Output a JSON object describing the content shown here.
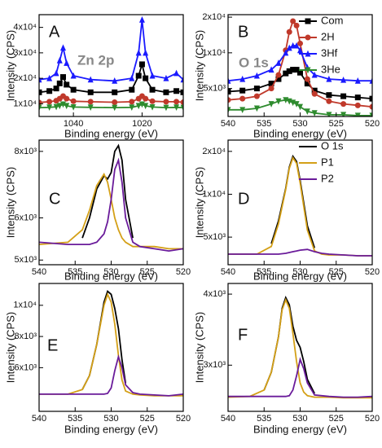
{
  "chart_data": [
    {
      "type": "line",
      "label": "A",
      "annotation": "Zn 2p",
      "xlabel": "Binding energy (eV)",
      "ylabel": "Intensity (CPS)",
      "xlim": [
        1050,
        1008
      ],
      "xticks": [
        1040,
        1020
      ],
      "ylim": [
        5000,
        45000
      ],
      "log": false,
      "yticks": [
        {
          "value": 10000,
          "label": "1x10⁴"
        },
        {
          "value": 20000,
          "label": "2x10⁴"
        },
        {
          "value": 30000,
          "label": "3x10⁴"
        },
        {
          "value": 40000,
          "label": "4x10⁴"
        }
      ],
      "x": [
        1050,
        1047,
        1045,
        1044,
        1043,
        1042,
        1040,
        1035,
        1028,
        1023,
        1021,
        1020,
        1019,
        1017,
        1013,
        1010,
        1008
      ],
      "series": [
        {
          "color": "#1a1aff",
          "marker": "triangle",
          "values": [
            19500,
            20000,
            22000,
            27000,
            32000,
            26000,
            21000,
            19500,
            19000,
            20000,
            30000,
            43000,
            30000,
            21000,
            20000,
            22000,
            19500
          ]
        },
        {
          "color": "#000000",
          "marker": "square",
          "values": [
            14500,
            15000,
            16000,
            18000,
            20500,
            17500,
            15500,
            14500,
            14500,
            15500,
            21000,
            25500,
            20000,
            15500,
            14500,
            15000,
            14500
          ]
        },
        {
          "color": "#c0392b",
          "marker": "circle",
          "values": [
            10500,
            10800,
            11200,
            12000,
            13000,
            12000,
            11000,
            10800,
            10600,
            10800,
            12000,
            13000,
            12000,
            11000,
            10800,
            10800,
            10600
          ]
        },
        {
          "color": "#2e8b2e",
          "marker": "triangle-down",
          "values": [
            8500,
            8600,
            8800,
            9200,
            9800,
            9200,
            8700,
            8600,
            8500,
            8600,
            9200,
            9800,
            9200,
            8700,
            8500,
            8600,
            8500
          ]
        }
      ]
    },
    {
      "type": "line",
      "label": "B",
      "annotation": "O 1s",
      "xlabel": "Binding energy (eV)",
      "ylabel": "Intensity (CPS)",
      "xlim": [
        540,
        520
      ],
      "xticks": [
        540,
        535,
        530,
        525,
        520
      ],
      "ylim": [
        2900,
        21000
      ],
      "log": true,
      "legend": "upper right",
      "yticks": [
        {
          "value": 5000,
          "label": "5x10³"
        },
        {
          "value": 10000,
          "label": "1x10⁴"
        },
        {
          "value": 20000,
          "label": "2x10⁴"
        }
      ],
      "x": [
        540,
        538,
        536,
        534,
        533,
        532,
        531.5,
        531,
        530.5,
        530,
        529,
        528,
        526,
        524,
        522,
        520
      ],
      "series": [
        {
          "name": "Com",
          "color": "#000000",
          "marker": "square",
          "values": [
            4700,
            4800,
            5000,
            5500,
            6000,
            6700,
            7000,
            7200,
            7200,
            6800,
            5500,
            4800,
            4400,
            4300,
            4200,
            4100
          ]
        },
        {
          "name": "2H",
          "color": "#c0392b",
          "marker": "circle",
          "values": [
            4000,
            4100,
            4300,
            5000,
            6500,
            10500,
            15000,
            18500,
            17000,
            12000,
            6000,
            4500,
            3900,
            3700,
            3600,
            3500
          ]
        },
        {
          "name": "3Hf",
          "color": "#1a1aff",
          "marker": "triangle",
          "values": [
            5800,
            6000,
            6400,
            7200,
            8200,
            10000,
            11000,
            11500,
            11500,
            10500,
            7500,
            6500,
            6000,
            5900,
            5800,
            5800
          ]
        },
        {
          "name": "3He",
          "color": "#2e8b2e",
          "marker": "triangle-down",
          "values": [
            3300,
            3300,
            3400,
            3700,
            3900,
            4000,
            3900,
            3800,
            3700,
            3500,
            3200,
            3100,
            3000,
            3000,
            2950,
            2950
          ]
        }
      ]
    },
    {
      "type": "line",
      "label": "C",
      "xlabel": "Binding energy (eV)",
      "ylabel": "Intensity (CPS)",
      "xlim": [
        540,
        520
      ],
      "xticks": [
        540,
        535,
        530,
        525,
        520
      ],
      "ylim": [
        4900,
        8400
      ],
      "log": true,
      "yticks": [
        {
          "value": 5000,
          "label": "5x10³"
        },
        {
          "value": 6000,
          "label": "6x10³"
        },
        {
          "value": 8000,
          "label": "8x10³"
        }
      ],
      "x": [
        540,
        536,
        534,
        533,
        532,
        531,
        530.5,
        530,
        529.5,
        529,
        528.5,
        528,
        527,
        526,
        524,
        522,
        520
      ],
      "series": [
        {
          "color": "#000000",
          "values": [
            null,
            null,
            5500,
            6000,
            6800,
            7200,
            7100,
            7300,
            8000,
            8200,
            7700,
            6500,
            5500,
            null,
            null,
            null,
            null
          ]
        },
        {
          "color": "#d4a017",
          "values": [
            5350,
            5400,
            5700,
            6200,
            6900,
            7250,
            7000,
            6500,
            6000,
            5700,
            5500,
            5400,
            5300,
            5300,
            5300,
            5250,
            5250
          ]
        },
        {
          "color": "#6a1b9a",
          "values": [
            5400,
            5350,
            5350,
            5350,
            5400,
            5600,
            5900,
            6500,
            7400,
            7700,
            7000,
            6000,
            5400,
            5300,
            5250,
            5200,
            5250
          ]
        }
      ]
    },
    {
      "type": "line",
      "label": "D",
      "xlabel": "Binding energy (eV)",
      "ylabel": "Intensity (CPS)",
      "xlim": [
        540,
        520
      ],
      "xticks": [
        540,
        535,
        530,
        525,
        520
      ],
      "ylim": [
        3200,
        24000
      ],
      "log": true,
      "legend": "upper right",
      "yticks": [
        {
          "value": 5000,
          "label": "5x10³"
        },
        {
          "value": 10000,
          "label": "1x10⁴"
        },
        {
          "value": 20000,
          "label": "2x10⁴"
        }
      ],
      "x": [
        540,
        536,
        534,
        533,
        532,
        531.5,
        531,
        530.5,
        530,
        529,
        528,
        527,
        526,
        524,
        522,
        520
      ],
      "series": [
        {
          "name": "O 1s",
          "color": "#000000",
          "values": [
            null,
            null,
            4500,
            6500,
            11000,
            15500,
            18500,
            17000,
            12500,
            6000,
            4200,
            null,
            null,
            null,
            null,
            null
          ]
        },
        {
          "name": "P1",
          "color": "#d4a017",
          "values": [
            3800,
            3800,
            4300,
            6200,
            10800,
            15200,
            18000,
            16500,
            12000,
            5600,
            4000,
            3800,
            3750,
            3750,
            3700,
            3700
          ]
        },
        {
          "name": "P2",
          "color": "#6a1b9a",
          "values": [
            3800,
            3800,
            3800,
            3800,
            3850,
            3900,
            3950,
            4000,
            4050,
            4100,
            3950,
            3850,
            3800,
            3750,
            3700,
            3700
          ]
        }
      ]
    },
    {
      "type": "line",
      "label": "E",
      "xlabel": "Binding energy (eV)",
      "ylabel": "Intensity (CPS)",
      "xlim": [
        540,
        520
      ],
      "xticks": [
        540,
        535,
        530,
        525,
        520
      ],
      "ylim": [
        3200,
        11400
      ],
      "log": false,
      "yticks": [
        {
          "value": 6000,
          "label": "6x10³"
        },
        {
          "value": 8000,
          "label": "8x10³"
        },
        {
          "value": 10000,
          "label": "1x10⁴"
        }
      ],
      "x": [
        540,
        536,
        534,
        533,
        532,
        531,
        530.5,
        530,
        529.5,
        529,
        528.5,
        528,
        527,
        526,
        524,
        522,
        520
      ],
      "series": [
        {
          "color": "#000000",
          "values": [
            null,
            null,
            4600,
            5500,
            7500,
            10200,
            10900,
            10700,
            9800,
            8500,
            6500,
            5000,
            null,
            null,
            null,
            null,
            null
          ]
        },
        {
          "color": "#d4a017",
          "values": [
            4300,
            4300,
            4600,
            5500,
            7500,
            10000,
            10700,
            10200,
            8800,
            6800,
            5200,
            4500,
            4300,
            4250,
            4200,
            4200,
            4200
          ]
        },
        {
          "color": "#6a1b9a",
          "values": [
            4300,
            4300,
            4300,
            4300,
            4300,
            4300,
            4350,
            4700,
            5800,
            6700,
            6000,
            4900,
            4400,
            4300,
            4250,
            4200,
            4300
          ]
        }
      ]
    },
    {
      "type": "line",
      "label": "F",
      "xlabel": "Binding energy (eV)",
      "ylabel": "Intensity (CPS)",
      "xlim": [
        540,
        520
      ],
      "xticks": [
        540,
        535,
        530,
        525,
        520
      ],
      "ylim": [
        2350,
        4150
      ],
      "log": false,
      "yticks": [
        {
          "value": 3000,
          "label": "3x10³"
        },
        {
          "value": 4000,
          "label": "4x10³"
        }
      ],
      "x": [
        540,
        537,
        535,
        534,
        533,
        532.5,
        532,
        531.5,
        531,
        530.5,
        530,
        529.5,
        529,
        528,
        526,
        524,
        522,
        520
      ],
      "series": [
        {
          "color": "#000000",
          "values": [
            null,
            null,
            2650,
            2900,
            3400,
            3800,
            3950,
            3850,
            3550,
            3350,
            3250,
            3050,
            2800,
            2600,
            null,
            null,
            null,
            null
          ]
        },
        {
          "color": "#d4a017",
          "values": [
            2550,
            2560,
            2650,
            2900,
            3400,
            3780,
            3920,
            3800,
            3450,
            3050,
            2750,
            2620,
            2570,
            2550,
            2550,
            2540,
            2540,
            2540
          ]
        },
        {
          "color": "#6a1b9a",
          "values": [
            2560,
            2560,
            2560,
            2560,
            2560,
            2560,
            2560,
            2570,
            2650,
            2850,
            3080,
            2950,
            2750,
            2580,
            2560,
            2550,
            2550,
            2560
          ]
        }
      ]
    }
  ]
}
